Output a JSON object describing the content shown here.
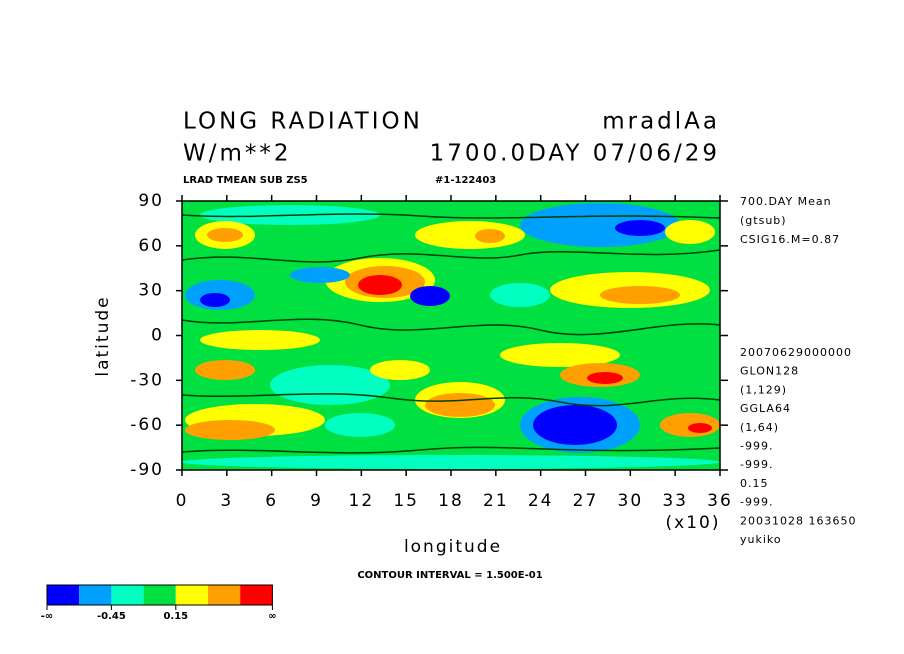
{
  "header": {
    "title": "LONG RADIATION",
    "variable": "mradlAa",
    "units": "W/m**2",
    "time": "1700.0DAY 07/06/29",
    "subtitle": "LRAD TMEAN SUB ZS5",
    "run_id": "#1-122403"
  },
  "chart_data": {
    "type": "contour",
    "xlabel": "longitude",
    "ylabel": "latitude",
    "x_multiplier": "(x10)",
    "xlim": [
      0,
      36
    ],
    "ylim": [
      -90,
      90
    ],
    "xticks": [
      0,
      3,
      6,
      9,
      12,
      15,
      18,
      21,
      24,
      27,
      30,
      33,
      36
    ],
    "yticks": [
      -90,
      -60,
      -30,
      0,
      30,
      60,
      90
    ],
    "contour_interval": "CONTOUR INTERVAL = 1.500E-01"
  },
  "side_info": {
    "top": [
      "700.DAY Mean",
      "(gtsub)",
      "CSIG16.M=0.87"
    ],
    "bottom": [
      "20070629000000",
      "GLON128",
      "(1,129)",
      "GGLA64",
      "(1,64)",
      "-999.",
      "-999.",
      "0.15",
      "-999.",
      "20031028 163650",
      "yukiko"
    ]
  },
  "colorbar": {
    "colors": [
      "#0000ff",
      "#00a0ff",
      "#00ffc0",
      "#00e040",
      "#ffff00",
      "#ffa000",
      "#ff0000"
    ],
    "labels": [
      "-∞",
      "-0.45",
      "0.15",
      "∞"
    ]
  }
}
